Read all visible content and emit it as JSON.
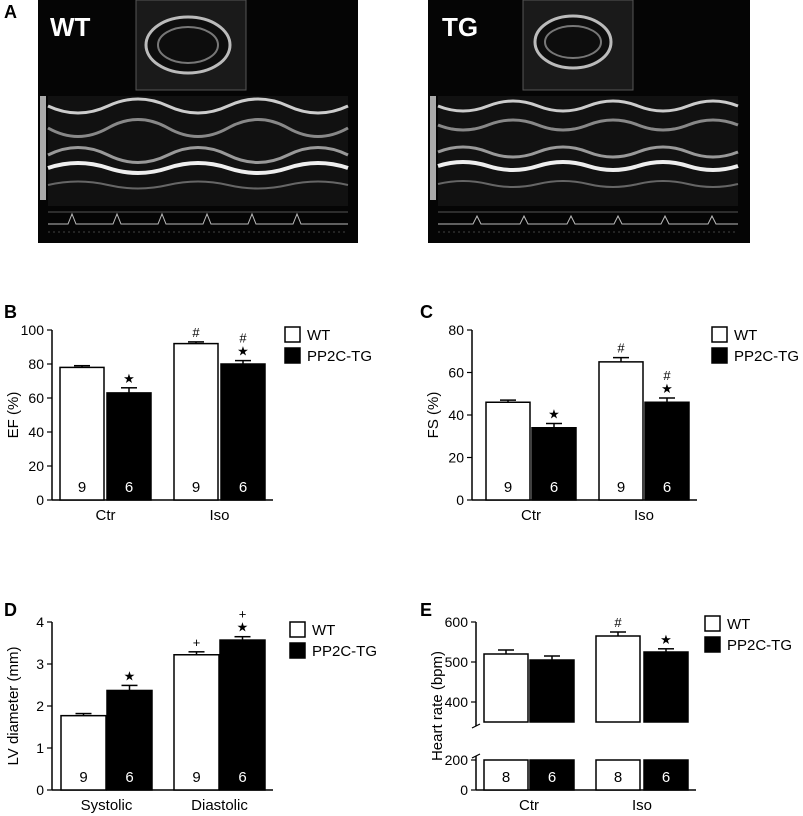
{
  "panels": {
    "A": "A",
    "B": "B",
    "C": "C",
    "D": "D",
    "E": "E"
  },
  "echo": {
    "wt_label": "WT",
    "tg_label": "TG"
  },
  "colors": {
    "wt_fill": "#ffffff",
    "tg_fill": "#000000",
    "axis": "#000000"
  },
  "legend": {
    "wt": "WT",
    "tg": "PP2C-TG"
  },
  "chart_data": [
    {
      "id": "B",
      "type": "bar",
      "ylabel": "EF (%)",
      "ylim": [
        0,
        100
      ],
      "yticks": [
        0,
        20,
        40,
        60,
        80,
        100
      ],
      "categories": [
        "Ctr",
        "Iso"
      ],
      "series": [
        {
          "name": "WT",
          "values": [
            78,
            92
          ],
          "error": [
            1,
            1
          ],
          "n": [
            "9",
            "9"
          ],
          "marks": [
            "",
            "#"
          ]
        },
        {
          "name": "PP2C-TG",
          "values": [
            63,
            80
          ],
          "error": [
            3,
            2
          ],
          "n": [
            "6",
            "6"
          ],
          "marks": [
            "★",
            "#\n★"
          ]
        }
      ],
      "legend": "top-right"
    },
    {
      "id": "C",
      "type": "bar",
      "ylabel": "FS (%)",
      "ylim": [
        0,
        80
      ],
      "yticks": [
        0,
        20,
        40,
        60,
        80
      ],
      "categories": [
        "Ctr",
        "Iso"
      ],
      "series": [
        {
          "name": "WT",
          "values": [
            46,
            65
          ],
          "error": [
            1,
            2
          ],
          "n": [
            "9",
            "9"
          ],
          "marks": [
            "",
            "#"
          ]
        },
        {
          "name": "PP2C-TG",
          "values": [
            34,
            46
          ],
          "error": [
            2,
            2
          ],
          "n": [
            "6",
            "6"
          ],
          "marks": [
            "★",
            "#\n★"
          ]
        }
      ],
      "legend": "top-right"
    },
    {
      "id": "D",
      "type": "bar",
      "ylabel": "LV diameter (mm)",
      "ylim": [
        0,
        4
      ],
      "yticks": [
        0,
        1,
        2,
        3,
        4
      ],
      "categories": [
        "Systolic",
        "Diastolic"
      ],
      "series": [
        {
          "name": "WT",
          "values": [
            1.77,
            3.22
          ],
          "error": [
            0.05,
            0.07
          ],
          "n": [
            "9",
            "9"
          ],
          "marks": [
            "",
            "+"
          ]
        },
        {
          "name": "PP2C-TG",
          "values": [
            2.37,
            3.57
          ],
          "error": [
            0.12,
            0.08
          ],
          "n": [
            "6",
            "6"
          ],
          "marks": [
            "★",
            "+\n★"
          ]
        }
      ],
      "legend": "top-right"
    },
    {
      "id": "E",
      "type": "bar",
      "ylabel": "Heart rate (bpm)",
      "ylim": [
        0,
        600
      ],
      "yticks": [
        0,
        200,
        400,
        500,
        600
      ],
      "axis_break": [
        200,
        350
      ],
      "categories": [
        "Ctr",
        "Iso"
      ],
      "series": [
        {
          "name": "WT",
          "values": [
            520,
            565
          ],
          "error": [
            10,
            10
          ],
          "n": [
            "8",
            "8"
          ],
          "marks": [
            "",
            "#"
          ]
        },
        {
          "name": "PP2C-TG",
          "values": [
            505,
            525
          ],
          "error": [
            10,
            8
          ],
          "n": [
            "6",
            "6"
          ],
          "marks": [
            "",
            "★"
          ]
        }
      ],
      "legend": "top-right"
    }
  ]
}
